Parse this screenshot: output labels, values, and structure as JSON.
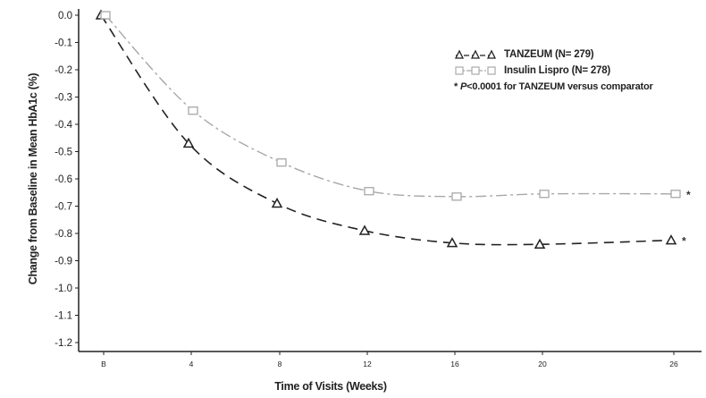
{
  "chart_data": {
    "type": "line",
    "title": "",
    "xlabel": "Time of Visits (Weeks)",
    "ylabel": "Change from Baseline in Mean HbA1c (%)",
    "categories": [
      "B",
      "4",
      "8",
      "12",
      "16",
      "20",
      "26"
    ],
    "x": [
      0,
      4,
      8,
      12,
      16,
      20,
      26
    ],
    "ylim": [
      -1.2,
      0.0
    ],
    "yticks": [
      "0.0",
      "-0.1",
      "-0.2",
      "-0.3",
      "-0.4",
      "-0.5",
      "-0.6",
      "-0.7",
      "-0.8",
      "-0.9",
      "-1.0",
      "-1.1",
      "-1.2"
    ],
    "grid": false,
    "legend_position": "upper right",
    "series": [
      {
        "name": "TANZEUM (N= 279)",
        "marker": "triangle",
        "line_style": "dashed",
        "color": "#222222",
        "values": [
          0.0,
          -0.47,
          -0.69,
          -0.79,
          -0.835,
          -0.84,
          -0.825
        ],
        "end_annotation": "*"
      },
      {
        "name": "Insulin Lispro (N= 278)",
        "marker": "square",
        "line_style": "dash-dot",
        "color": "#a8a8a8",
        "values": [
          0.0,
          -0.35,
          -0.54,
          -0.645,
          -0.665,
          -0.655,
          -0.655
        ],
        "end_annotation": "*"
      }
    ],
    "annotations": [
      "* P <0.0001 for TANZEUM versus comparator"
    ]
  },
  "labels": {
    "xlabel": "Time of Visits (Weeks)",
    "ylabel": "Change from Baseline in Mean HbA1c (%)",
    "legend_tanzeum": "TANZEUM (N= 279)",
    "legend_lispro": "Insulin Lispro (N= 278)",
    "note_star": "* ",
    "note_p": "P",
    "note_rest": " <0.0001 for TANZEUM versus comparator"
  }
}
